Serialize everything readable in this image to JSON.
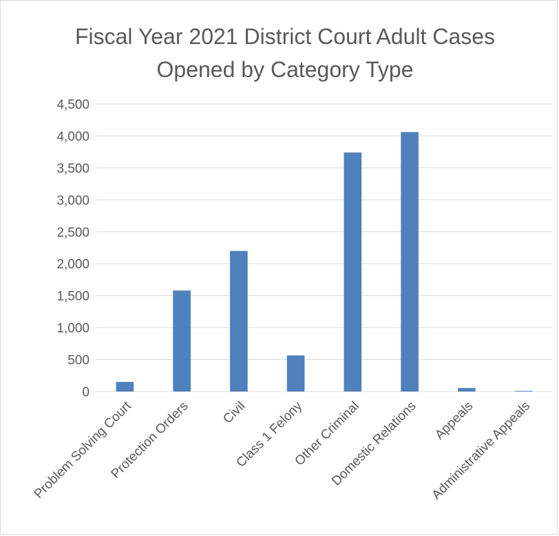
{
  "colors": {
    "bar": "#4f81bd",
    "gridline": "#d9d9d9",
    "text": "#595959"
  },
  "chart_data": {
    "type": "bar",
    "title": [
      "Fiscal Year 2021 District Court Adult Cases",
      "Opened by Category Type"
    ],
    "xlabel": "",
    "ylabel": "",
    "ylim": [
      0,
      4500
    ],
    "yticks": [
      0,
      500,
      1000,
      1500,
      2000,
      2500,
      3000,
      3500,
      4000,
      4500
    ],
    "ytick_labels": [
      "0",
      "500",
      "1,000",
      "1,500",
      "2,000",
      "2,500",
      "3,000",
      "3,500",
      "4,000",
      "4,500"
    ],
    "grid": true,
    "legend": "none",
    "categories": [
      "Problem Solving Court",
      "Protection Orders",
      "Civil",
      "Class 1 Felony",
      "Other Criminal",
      "Domestic Relations",
      "Appeals",
      "Administrative Appeals"
    ],
    "values": [
      150,
      1580,
      2200,
      565,
      3740,
      4060,
      55,
      10
    ]
  }
}
